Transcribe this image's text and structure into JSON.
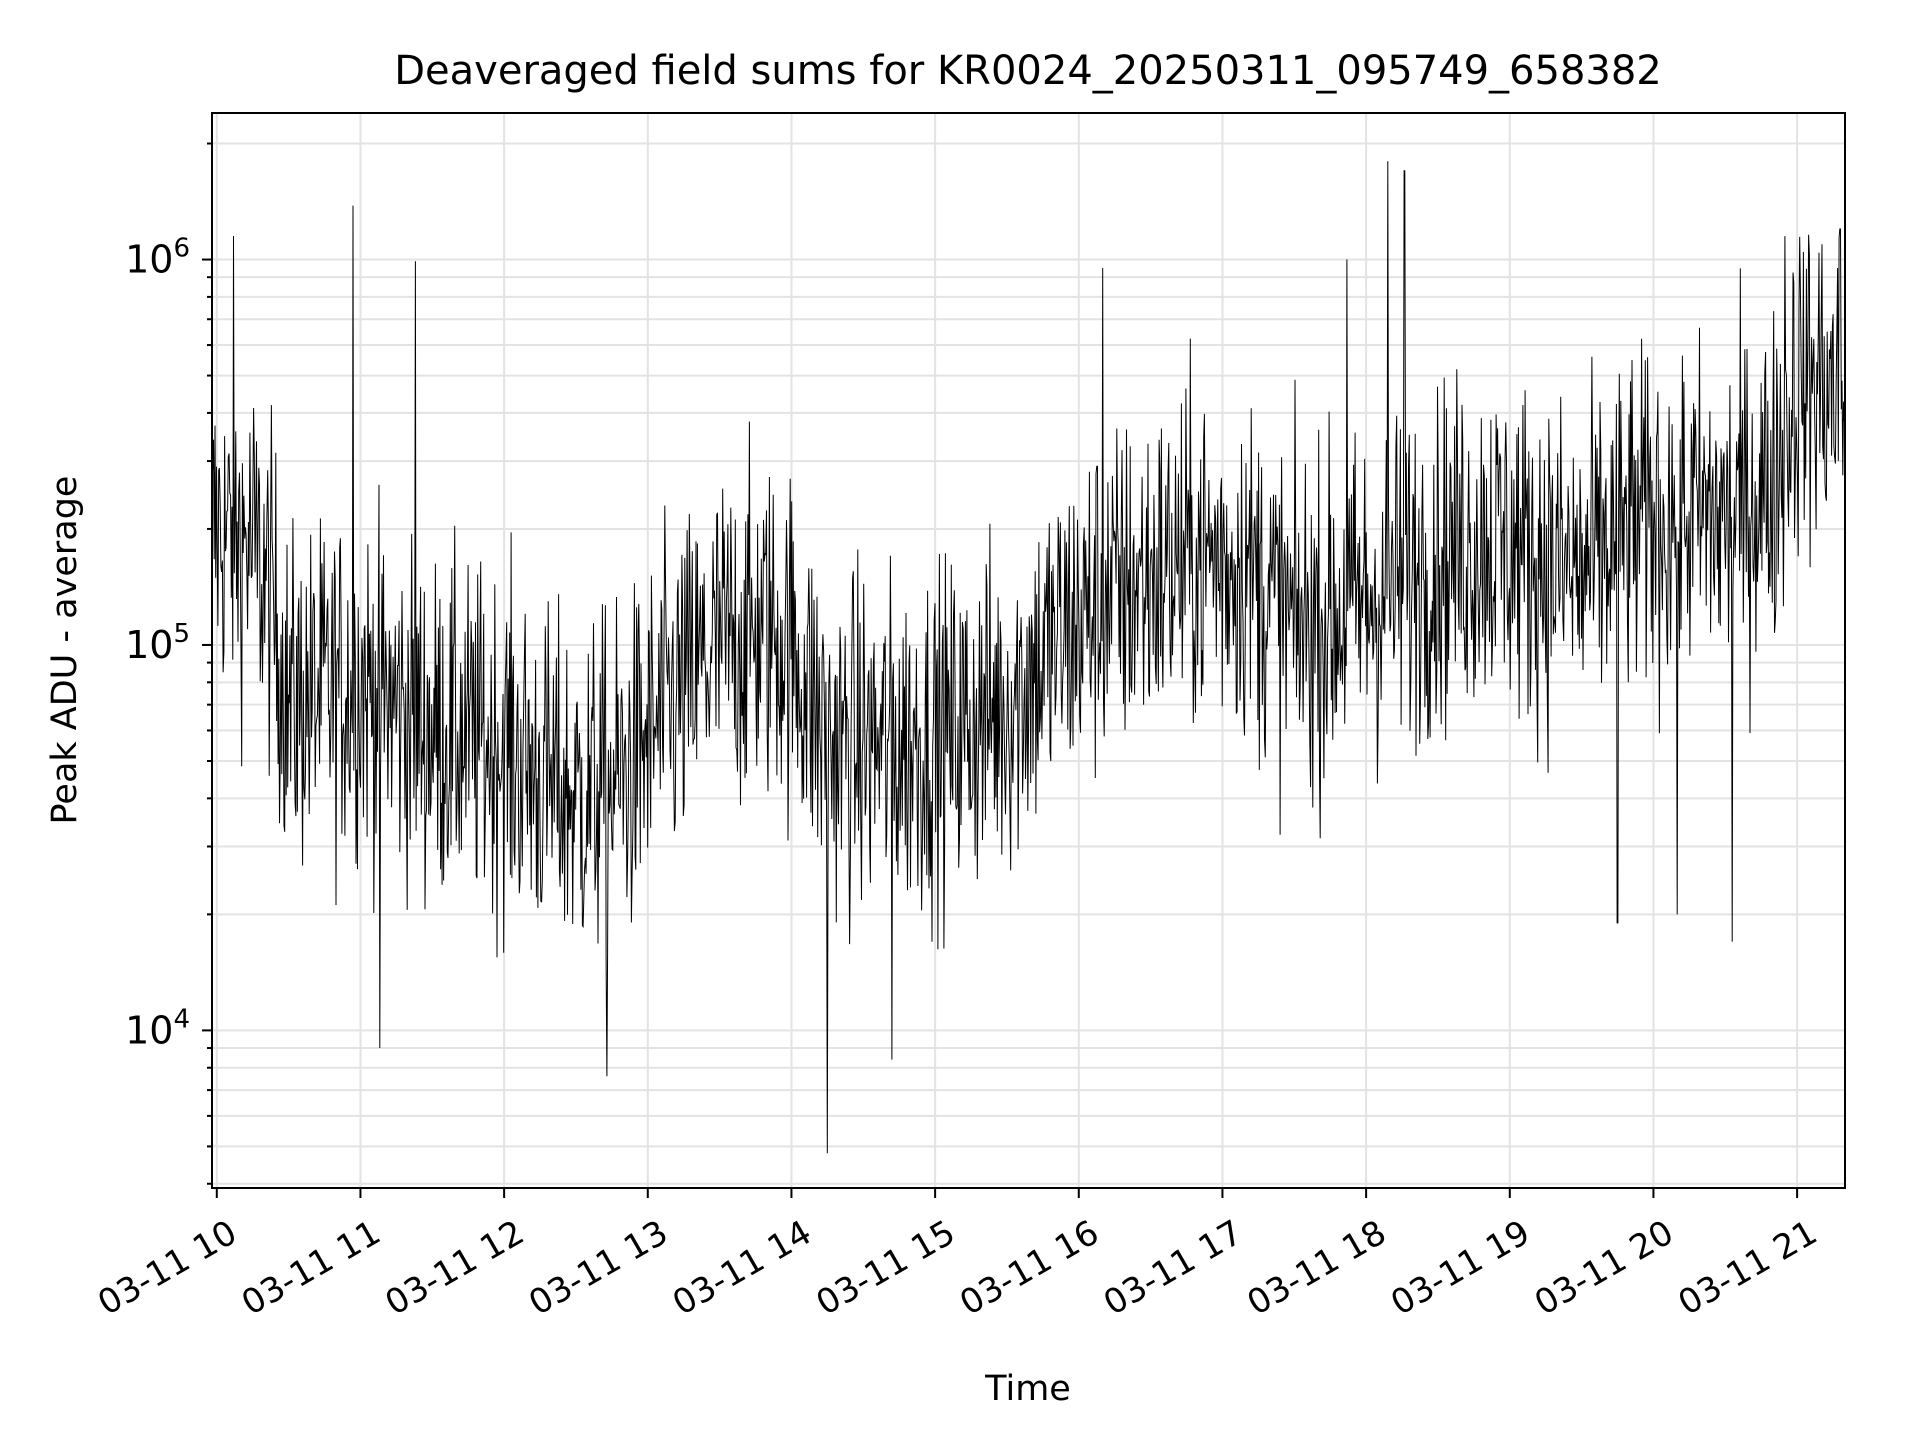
{
  "chart_data": {
    "type": "line",
    "title": "Deaveraged field sums for KR0024_20250311_095749_658382",
    "xlabel": "Time",
    "ylabel": "Peak ADU - average",
    "yscale": "log",
    "ylim": [
      3900,
      2400000
    ],
    "xlim": [
      "03-11 09:58",
      "03-11 21:20"
    ],
    "grid": true,
    "legend": "none",
    "line_color": "#000000",
    "x_ticks": [
      "03-11 10",
      "03-11 11",
      "03-11 12",
      "03-11 13",
      "03-11 14",
      "03-11 15",
      "03-11 16",
      "03-11 17",
      "03-11 18",
      "03-11 19",
      "03-11 20",
      "03-11 21"
    ],
    "y_ticks": [
      {
        "base": "10",
        "exp": "4",
        "value": 10000
      },
      {
        "base": "10",
        "exp": "5",
        "value": 100000
      },
      {
        "base": "10",
        "exp": "6",
        "value": 1000000
      }
    ],
    "series": [
      {
        "x": [
          "03-11 09:58",
          "03-11 10:15",
          "03-11 10:23",
          "03-11 10:30",
          "03-11 11:00",
          "03-11 11:30",
          "03-11 12:00",
          "03-11 12:15",
          "03-11 12:30",
          "03-11 12:50",
          "03-11 13:10",
          "03-11 13:30",
          "03-11 13:50",
          "03-11 14:00",
          "03-11 14:15",
          "03-11 14:30",
          "03-11 14:50",
          "03-11 15:10",
          "03-11 15:30",
          "03-11 15:50",
          "03-11 16:10",
          "03-11 16:30",
          "03-11 16:50",
          "03-11 17:10",
          "03-11 17:30",
          "03-11 17:50",
          "03-11 18:10",
          "03-11 18:30",
          "03-11 18:50",
          "03-11 19:10",
          "03-11 19:30",
          "03-11 19:50",
          "03-11 20:10",
          "03-11 20:30",
          "03-11 20:50",
          "03-11 21:00",
          "03-11 21:10",
          "03-11 21:20"
        ],
        "y": [
          200000,
          180000,
          130000,
          70000,
          80000,
          60000,
          55000,
          45000,
          40000,
          45000,
          70000,
          100000,
          110000,
          100000,
          55000,
          55000,
          55000,
          60000,
          70000,
          100000,
          130000,
          150000,
          170000,
          160000,
          110000,
          120000,
          140000,
          170000,
          190000,
          170000,
          150000,
          200000,
          220000,
          210000,
          260000,
          480000,
          470000,
          440000
        ],
        "spikes": [
          {
            "x": "03-11 10:07",
            "y": 1150000
          },
          {
            "x": "03-11 10:57",
            "y": 1380000
          },
          {
            "x": "03-11 11:08",
            "y": 9000
          },
          {
            "x": "03-11 11:23",
            "y": 990000
          },
          {
            "x": "03-11 12:43",
            "y": 7600
          },
          {
            "x": "03-11 14:15",
            "y": 4800
          },
          {
            "x": "03-11 14:42",
            "y": 8400
          },
          {
            "x": "03-11 16:10",
            "y": 950000
          },
          {
            "x": "03-11 17:52",
            "y": 1000000
          },
          {
            "x": "03-11 18:09",
            "y": 1800000
          },
          {
            "x": "03-11 18:16",
            "y": 1700000
          },
          {
            "x": "03-11 19:45",
            "y": 19000
          },
          {
            "x": "03-11 20:10",
            "y": 20000
          },
          {
            "x": "03-11 20:33",
            "y": 17000
          },
          {
            "x": "03-11 20:55",
            "y": 1150000
          },
          {
            "x": "03-11 21:18",
            "y": 1200000
          }
        ]
      }
    ]
  }
}
